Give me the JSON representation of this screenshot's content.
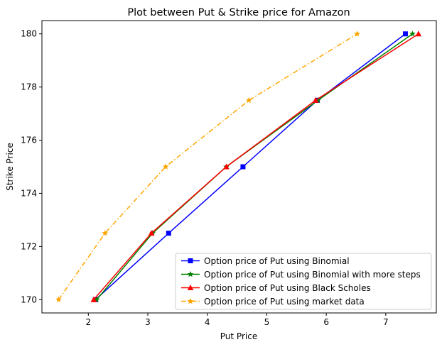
{
  "chart_data": {
    "type": "line",
    "title": "Plot between Put & Strike price for Amazon",
    "xlabel": "Put Price",
    "ylabel": "Strike Price",
    "xlim": [
      1.22,
      7.85
    ],
    "ylim": [
      169.5,
      180.5
    ],
    "xticks": [
      2,
      3,
      4,
      5,
      6,
      7
    ],
    "yticks": [
      170,
      172,
      174,
      176,
      178,
      180
    ],
    "grid": false,
    "legend_position": "lower right",
    "series": [
      {
        "name": "Option price of Put using Binomial",
        "color": "#0000ff",
        "linestyle": "solid",
        "marker": "square",
        "x": [
          2.12,
          3.35,
          4.6,
          5.85,
          7.33
        ],
        "y": [
          170,
          172.5,
          175,
          177.5,
          180
        ]
      },
      {
        "name": "Option price of Put using Binomial with more steps",
        "color": "#008000",
        "linestyle": "solid",
        "marker": "star",
        "x": [
          2.14,
          3.08,
          4.32,
          5.86,
          7.45
        ],
        "y": [
          170,
          172.5,
          175,
          177.5,
          180
        ]
      },
      {
        "name": "Option price of Put using Black Scholes",
        "color": "#ff0000",
        "linestyle": "solid",
        "marker": "triangle",
        "x": [
          2.09,
          3.06,
          4.32,
          5.82,
          7.55
        ],
        "y": [
          170,
          172.5,
          175,
          177.5,
          180
        ]
      },
      {
        "name": "Option price of Put using market data",
        "color": "#ffa500",
        "linestyle": "dashdot",
        "marker": "star",
        "x": [
          1.5,
          2.28,
          3.3,
          4.7,
          6.52
        ],
        "y": [
          170,
          172.5,
          175,
          177.5,
          180
        ]
      }
    ]
  }
}
